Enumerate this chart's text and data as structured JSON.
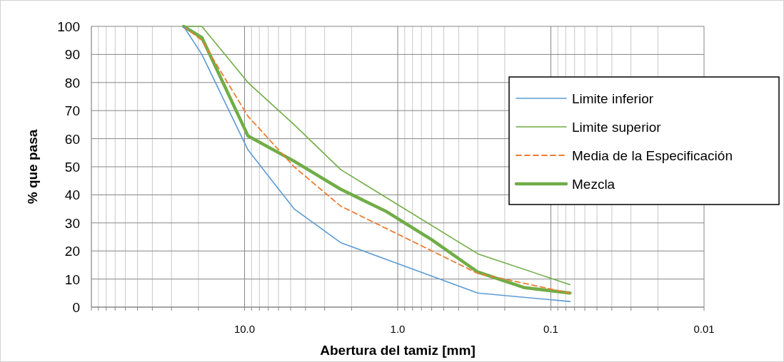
{
  "chart_data": {
    "type": "line",
    "xlabel": "Abertura del tamiz [mm]",
    "ylabel": "% que pasa",
    "log": "x",
    "xlim": [
      100,
      0.01
    ],
    "ylim": [
      0,
      100
    ],
    "xticks": [
      {
        "value": 100,
        "label": null
      },
      {
        "value": 90,
        "label": null
      },
      {
        "value": 80,
        "label": null
      },
      {
        "value": 70,
        "label": null
      },
      {
        "value": 60,
        "label": null
      },
      {
        "value": 50,
        "label": null
      },
      {
        "value": 40,
        "label": null
      },
      {
        "value": 30,
        "label": null
      },
      {
        "value": 20,
        "label": null
      },
      {
        "value": 10,
        "label": "10.0"
      },
      {
        "value": 9,
        "label": null
      },
      {
        "value": 8,
        "label": null
      },
      {
        "value": 7,
        "label": null
      },
      {
        "value": 6,
        "label": null
      },
      {
        "value": 5,
        "label": null
      },
      {
        "value": 4,
        "label": null
      },
      {
        "value": 3,
        "label": null
      },
      {
        "value": 2,
        "label": null
      },
      {
        "value": 1,
        "label": "1.0"
      },
      {
        "value": 0.9,
        "label": null
      },
      {
        "value": 0.8,
        "label": null
      },
      {
        "value": 0.7,
        "label": null
      },
      {
        "value": 0.6,
        "label": null
      },
      {
        "value": 0.5,
        "label": null
      },
      {
        "value": 0.4,
        "label": null
      },
      {
        "value": 0.3,
        "label": null
      },
      {
        "value": 0.2,
        "label": null
      },
      {
        "value": 0.1,
        "label": "0.1"
      },
      {
        "value": 0.09,
        "label": null
      },
      {
        "value": 0.08,
        "label": null
      },
      {
        "value": 0.07,
        "label": null
      },
      {
        "value": 0.06,
        "label": null
      },
      {
        "value": 0.05,
        "label": null
      },
      {
        "value": 0.04,
        "label": null
      },
      {
        "value": 0.03,
        "label": null
      },
      {
        "value": 0.02,
        "label": null
      },
      {
        "value": 0.01,
        "label": "0.01"
      }
    ],
    "yticks": [
      0,
      10,
      20,
      30,
      40,
      50,
      60,
      70,
      80,
      90,
      100
    ],
    "grid": true,
    "legend": "right",
    "series": [
      {
        "name": "Limite inferior",
        "color": "#5b9bd5",
        "line_style": "solid",
        "x": [
          25,
          19,
          9.5,
          4.75,
          2.36,
          0.3,
          0.075
        ],
        "values": [
          100,
          90,
          56,
          35,
          23,
          5,
          2
        ]
      },
      {
        "name": "Limite superior",
        "color": "#70ad47",
        "line_style": "solid",
        "x": [
          25,
          19,
          9.5,
          4.75,
          2.36,
          0.3,
          0.075
        ],
        "values": [
          100,
          100,
          80,
          65,
          49,
          19,
          8
        ]
      },
      {
        "name": "Media de la Especificación",
        "color": "#ed7d31",
        "line_style": "dashed",
        "x": [
          25,
          19,
          9.5,
          4.75,
          2.36,
          0.3,
          0.075
        ],
        "values": [
          100,
          95,
          68,
          50,
          36,
          12,
          5
        ]
      },
      {
        "name": "Mezcla",
        "color": "#70ad47",
        "line_style": "solid",
        "x": [
          25,
          19,
          9.5,
          4.75,
          2.36,
          1.18,
          0.6,
          0.3,
          0.15,
          0.075
        ],
        "values": [
          100,
          96,
          61,
          52,
          42,
          34,
          24,
          12.5,
          7,
          5
        ]
      }
    ]
  }
}
